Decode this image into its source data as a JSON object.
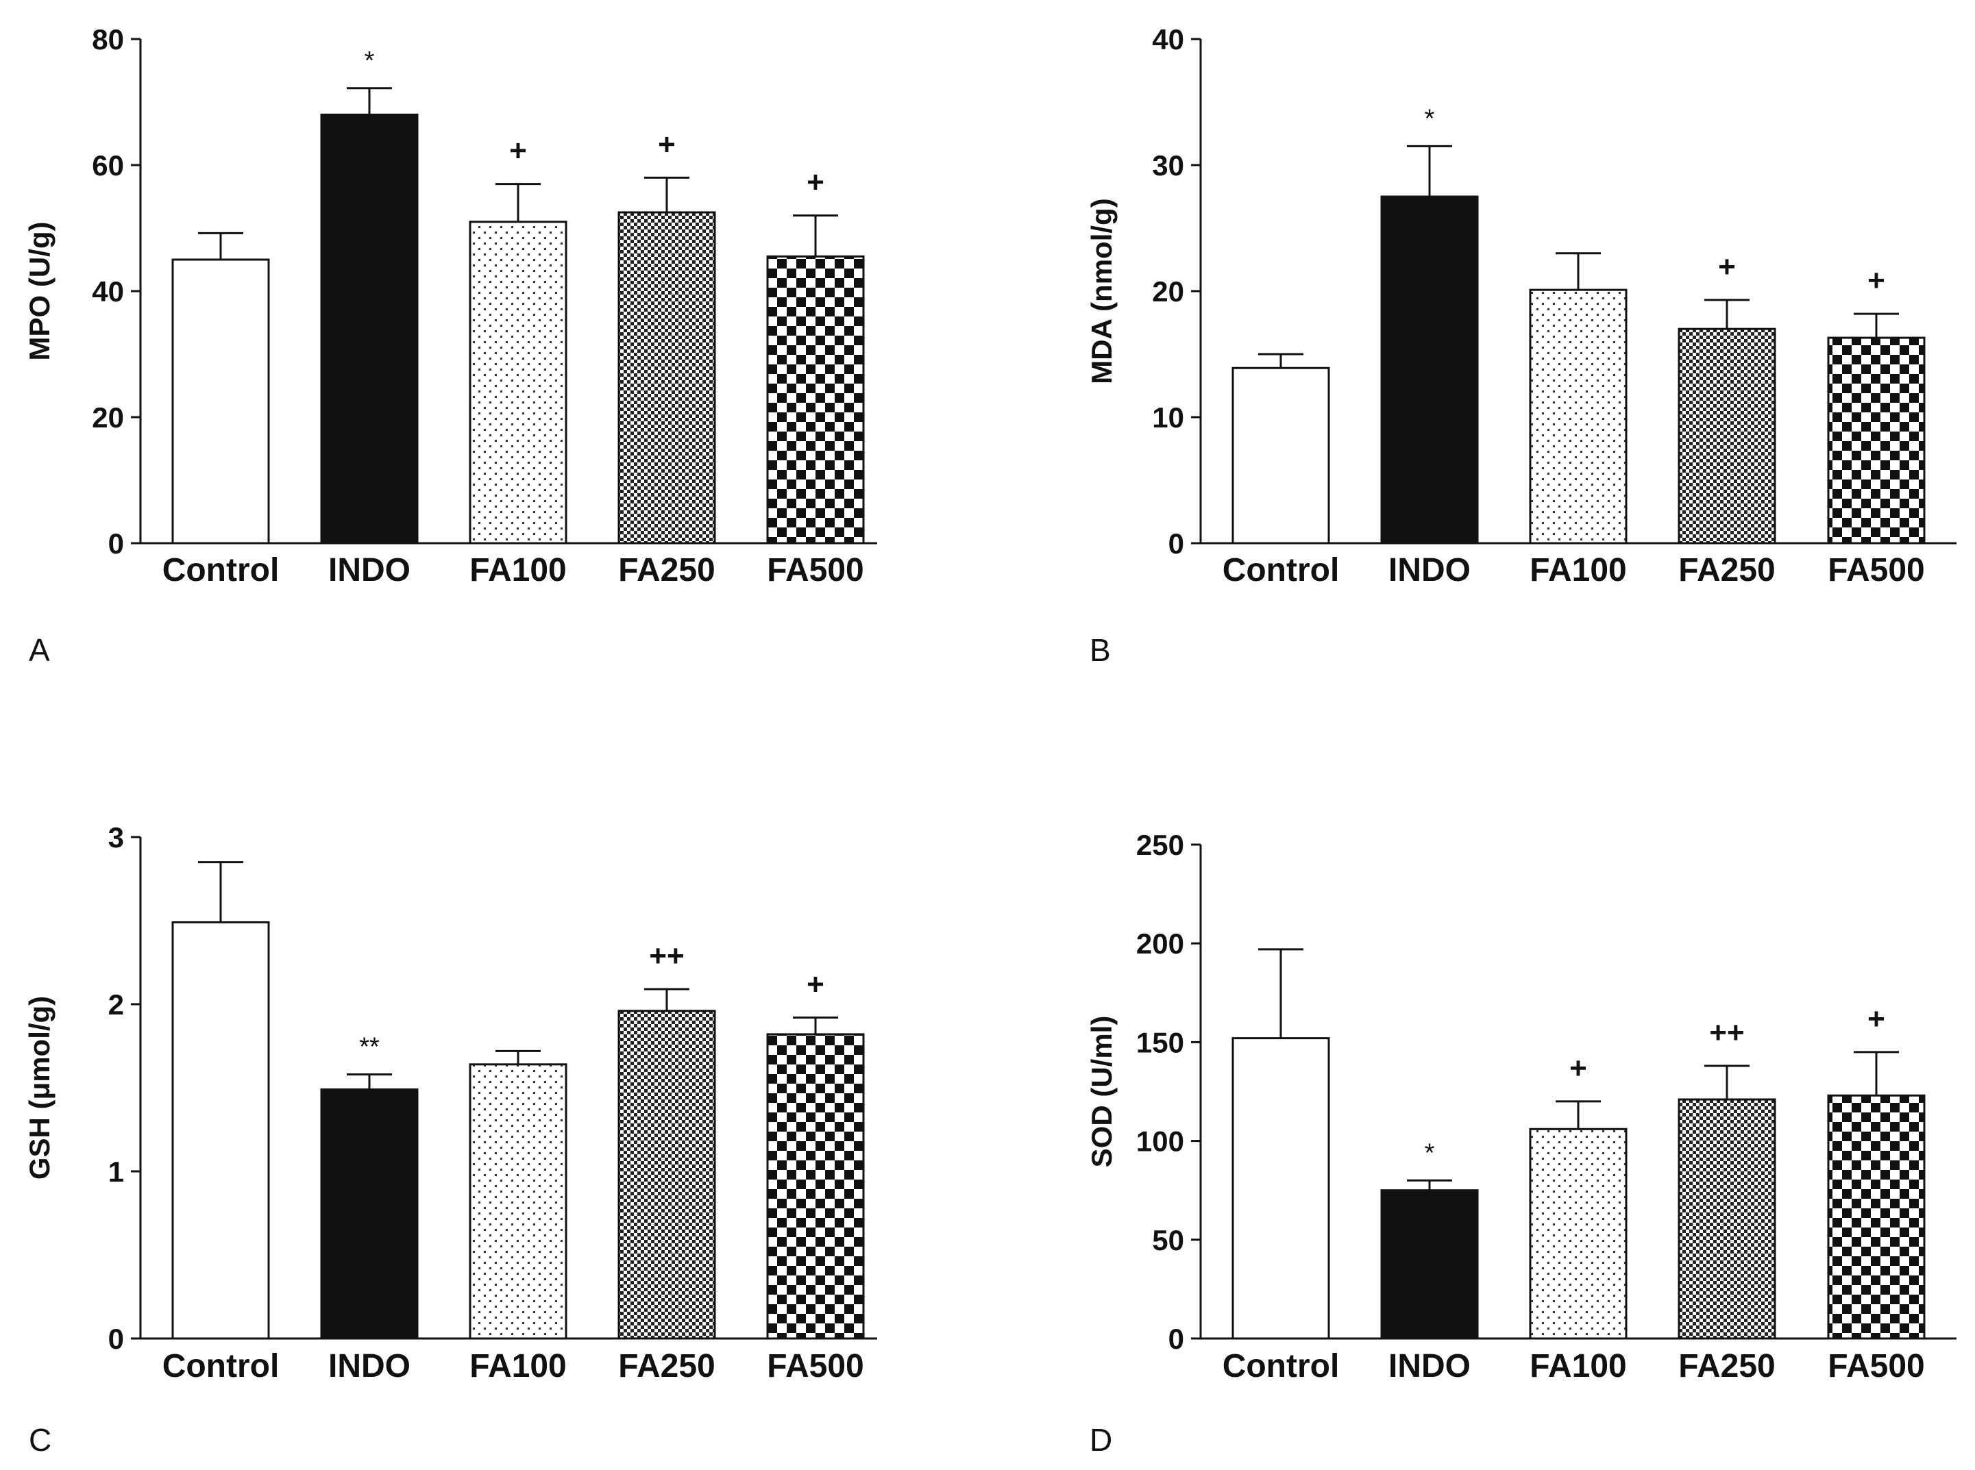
{
  "chart_data": [
    {
      "type": "bar",
      "panel": "A",
      "ylabel": "MPO (U/g)",
      "ylim": [
        0,
        80
      ],
      "yticks": [
        0,
        20,
        40,
        60,
        80
      ],
      "categories": [
        "Control",
        "INDO",
        "FA100",
        "FA250",
        "FA500"
      ],
      "values": [
        45,
        68,
        51,
        52.5,
        45.5
      ],
      "errors": [
        4.2,
        4.2,
        6,
        5.5,
        6.5
      ],
      "annotations": [
        "",
        "*",
        "+",
        "+",
        "+"
      ]
    },
    {
      "type": "bar",
      "panel": "B",
      "ylabel": "MDA (nmol/g)",
      "ylim": [
        0,
        40
      ],
      "yticks": [
        0,
        10,
        20,
        30,
        40
      ],
      "categories": [
        "Control",
        "INDO",
        "FA100",
        "FA250",
        "FA500"
      ],
      "values": [
        13.9,
        27.5,
        20.1,
        17,
        16.3
      ],
      "errors": [
        1.1,
        4,
        2.9,
        2.3,
        1.9
      ],
      "annotations": [
        "",
        "*",
        "",
        "+",
        "+"
      ]
    },
    {
      "type": "bar",
      "panel": "C",
      "ylabel": "GSH (μmol/g)",
      "ylim": [
        0,
        3
      ],
      "yticks": [
        0,
        1,
        2,
        3
      ],
      "categories": [
        "Control",
        "INDO",
        "FA100",
        "FA250",
        "FA500"
      ],
      "values": [
        2.49,
        1.49,
        1.64,
        1.96,
        1.82
      ],
      "errors": [
        0.36,
        0.09,
        0.08,
        0.13,
        0.1
      ],
      "annotations": [
        "",
        "**",
        "",
        "++",
        "+"
      ]
    },
    {
      "type": "bar",
      "panel": "D",
      "ylabel": "SOD (U/ml)",
      "ylim": [
        0,
        250
      ],
      "yticks": [
        0,
        50,
        100,
        150,
        200,
        250
      ],
      "categories": [
        "Control",
        "INDO",
        "FA100",
        "FA250",
        "FA500"
      ],
      "values": [
        152,
        75,
        106,
        121,
        123
      ],
      "errors": [
        45,
        5,
        14,
        17,
        22
      ],
      "annotations": [
        "",
        "*",
        "+",
        "++",
        "+"
      ]
    }
  ],
  "patterns": [
    "open",
    "solid",
    "fine-dots",
    "checker-fine",
    "checker-coarse"
  ],
  "colors": {
    "ink": "#111111",
    "background": "#ffffff"
  }
}
